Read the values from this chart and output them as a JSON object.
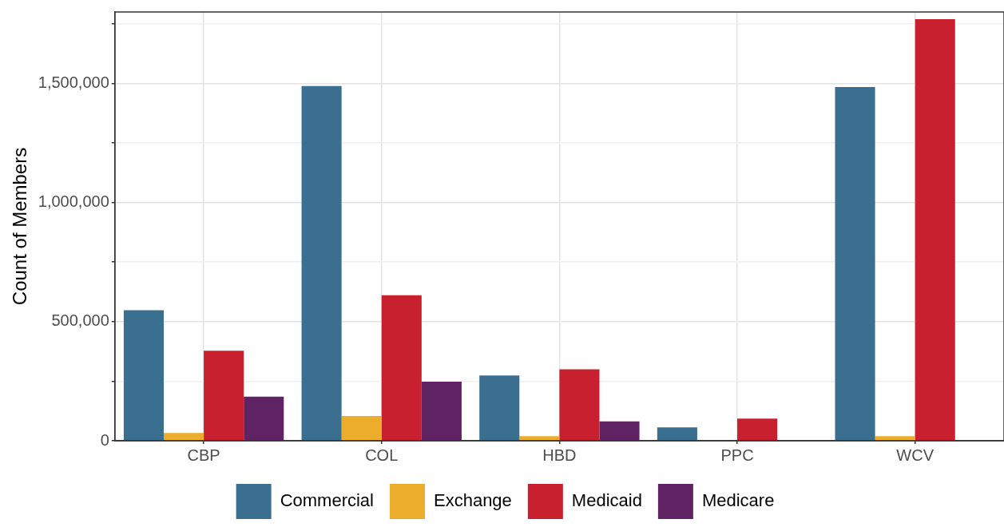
{
  "chart_data": {
    "type": "bar",
    "ylabel": "Count of Members",
    "categories": [
      "CBP",
      "COL",
      "HBD",
      "PPC",
      "WCV"
    ],
    "series": [
      {
        "name": "Commercial",
        "color": "#3a6f8f",
        "values": [
          548000,
          1489000,
          274000,
          56000,
          1485000
        ]
      },
      {
        "name": "Exchange",
        "color": "#ecac2c",
        "values": [
          33000,
          104000,
          19000,
          null,
          19000
        ]
      },
      {
        "name": "Medicaid",
        "color": "#c8202f",
        "values": [
          378000,
          611000,
          300000,
          93000,
          1770000
        ]
      },
      {
        "name": "Medicare",
        "color": "#5f2263",
        "values": [
          185000,
          248000,
          81000,
          null,
          null
        ]
      }
    ],
    "ylim": [
      0,
      1800000
    ],
    "yticks": [
      0,
      {
        "value": 250000,
        "label": null
      },
      "500,000",
      {
        "value": 750000,
        "label": null
      },
      {
        "value": 1000000,
        "label": "1,000,000"
      },
      {
        "value": 1250000,
        "label": null
      },
      {
        "value": 1500000,
        "label": "1,500,000"
      },
      {
        "value": 1750000,
        "label": null
      }
    ],
    "grid": true,
    "legend": "bottom"
  }
}
